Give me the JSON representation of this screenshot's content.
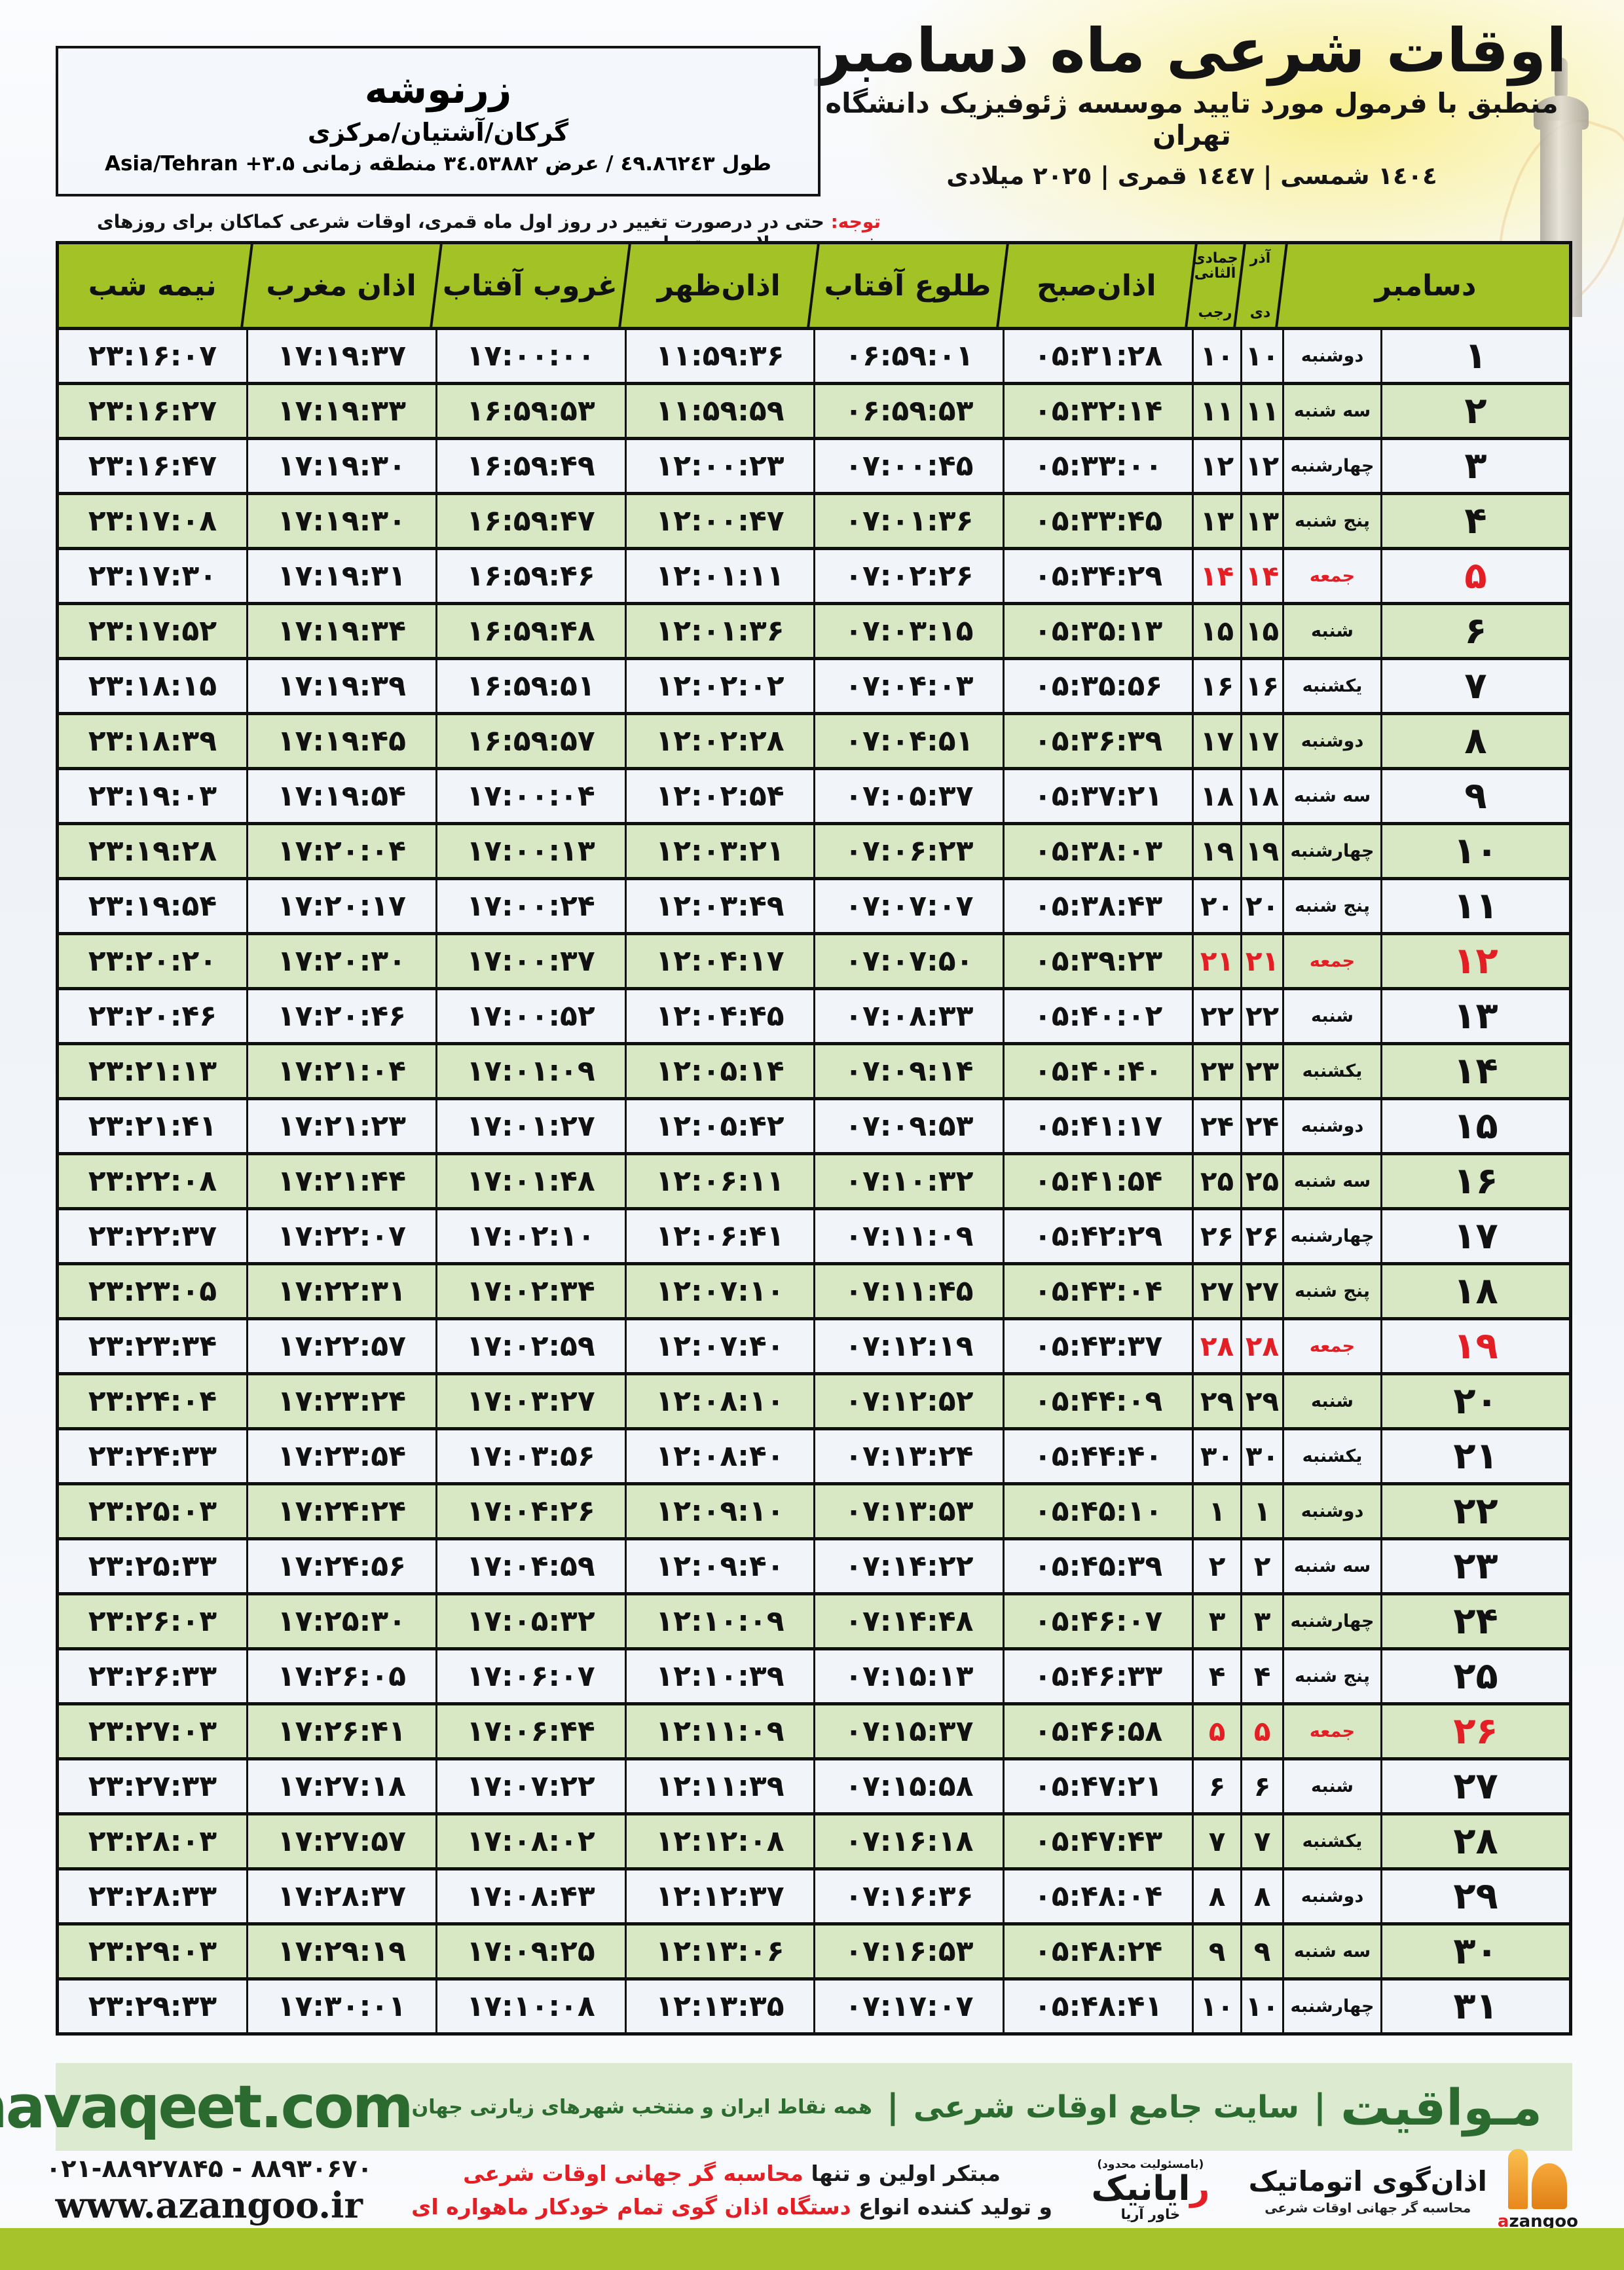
{
  "colors": {
    "accent_green": "#a2c225",
    "row_green": "#d9e8c4",
    "row_light": "#f1f4f9",
    "friday_red": "#e31e24",
    "band_green_bg": "#dcead0",
    "band_green_text": "#2c6b2f",
    "bottom_bar": "#a6c32b"
  },
  "header": {
    "title": "اوقات شرعی ماه دسامبر",
    "subtitle": "منطبق با فرمول مورد تایید موسسه ژئوفیزیک دانشگاه تهران",
    "calendar_years": "١٤٠٤ شمسی | ١٤٤٧ قمری | ٢٠٢٥ میلادی"
  },
  "location": {
    "name": "زرنوشه",
    "region": "گرکان/آشتیان/مرکزی",
    "coordinates": "طول ٤٩.٨٦٢٤٣ / عرض ٣٤.٥٣٨٨٢ منطقه زمانی ۳.۵+ Asia/Tehran"
  },
  "notice": {
    "label": "توجه:",
    "text": " حتی در درصورت تغییر در روز اول ماه قمری، اوقات شرعی کماکان برای روزهای شمسی و میلادی معتبر است."
  },
  "table": {
    "headers": {
      "december": "دسامبر",
      "persian_month_top": "آذر",
      "persian_month_bottom": "دی",
      "hijri_month_top": "جمادی الثانی",
      "hijri_month_bottom": "رجب",
      "fajr": "اذان‌صبح",
      "sunrise": "طلوع آفتاب",
      "dhuhr": "اذان‌ظهر",
      "sunset": "غروب آفتاب",
      "maghrib": "اذان مغرب",
      "midnight": "نیمه شب"
    },
    "rows": [
      {
        "day": "۱",
        "weekday": "دوشنبه",
        "pday": "۱۰",
        "hday": "۱۰",
        "fajr": "۰۵:۳۱:۲۸",
        "sunrise": "۰۶:۵۹:۰۱",
        "dhuhr": "۱۱:۵۹:۳۶",
        "sunset": "۱۷:۰۰:۰۰",
        "maghrib": "۱۷:۱۹:۳۷",
        "midnight": "۲۳:۱۶:۰۷",
        "friday": false
      },
      {
        "day": "۲",
        "weekday": "سه شنبه",
        "pday": "۱۱",
        "hday": "۱۱",
        "fajr": "۰۵:۳۲:۱۴",
        "sunrise": "۰۶:۵۹:۵۳",
        "dhuhr": "۱۱:۵۹:۵۹",
        "sunset": "۱۶:۵۹:۵۳",
        "maghrib": "۱۷:۱۹:۳۳",
        "midnight": "۲۳:۱۶:۲۷",
        "friday": false
      },
      {
        "day": "۳",
        "weekday": "چهارشنبه",
        "pday": "۱۲",
        "hday": "۱۲",
        "fajr": "۰۵:۳۳:۰۰",
        "sunrise": "۰۷:۰۰:۴۵",
        "dhuhr": "۱۲:۰۰:۲۳",
        "sunset": "۱۶:۵۹:۴۹",
        "maghrib": "۱۷:۱۹:۳۰",
        "midnight": "۲۳:۱۶:۴۷",
        "friday": false
      },
      {
        "day": "۴",
        "weekday": "پنج شنبه",
        "pday": "۱۳",
        "hday": "۱۳",
        "fajr": "۰۵:۳۳:۴۵",
        "sunrise": "۰۷:۰۱:۳۶",
        "dhuhr": "۱۲:۰۰:۴۷",
        "sunset": "۱۶:۵۹:۴۷",
        "maghrib": "۱۷:۱۹:۳۰",
        "midnight": "۲۳:۱۷:۰۸",
        "friday": false
      },
      {
        "day": "۵",
        "weekday": "جمعه",
        "pday": "۱۴",
        "hday": "۱۴",
        "fajr": "۰۵:۳۴:۲۹",
        "sunrise": "۰۷:۰۲:۲۶",
        "dhuhr": "۱۲:۰۱:۱۱",
        "sunset": "۱۶:۵۹:۴۶",
        "maghrib": "۱۷:۱۹:۳۱",
        "midnight": "۲۳:۱۷:۳۰",
        "friday": true
      },
      {
        "day": "۶",
        "weekday": "شنبه",
        "pday": "۱۵",
        "hday": "۱۵",
        "fajr": "۰۵:۳۵:۱۳",
        "sunrise": "۰۷:۰۳:۱۵",
        "dhuhr": "۱۲:۰۱:۳۶",
        "sunset": "۱۶:۵۹:۴۸",
        "maghrib": "۱۷:۱۹:۳۴",
        "midnight": "۲۳:۱۷:۵۲",
        "friday": false
      },
      {
        "day": "۷",
        "weekday": "یکشنبه",
        "pday": "۱۶",
        "hday": "۱۶",
        "fajr": "۰۵:۳۵:۵۶",
        "sunrise": "۰۷:۰۴:۰۳",
        "dhuhr": "۱۲:۰۲:۰۲",
        "sunset": "۱۶:۵۹:۵۱",
        "maghrib": "۱۷:۱۹:۳۹",
        "midnight": "۲۳:۱۸:۱۵",
        "friday": false
      },
      {
        "day": "۸",
        "weekday": "دوشنبه",
        "pday": "۱۷",
        "hday": "۱۷",
        "fajr": "۰۵:۳۶:۳۹",
        "sunrise": "۰۷:۰۴:۵۱",
        "dhuhr": "۱۲:۰۲:۲۸",
        "sunset": "۱۶:۵۹:۵۷",
        "maghrib": "۱۷:۱۹:۴۵",
        "midnight": "۲۳:۱۸:۳۹",
        "friday": false
      },
      {
        "day": "۹",
        "weekday": "سه شنبه",
        "pday": "۱۸",
        "hday": "۱۸",
        "fajr": "۰۵:۳۷:۲۱",
        "sunrise": "۰۷:۰۵:۳۷",
        "dhuhr": "۱۲:۰۲:۵۴",
        "sunset": "۱۷:۰۰:۰۴",
        "maghrib": "۱۷:۱۹:۵۴",
        "midnight": "۲۳:۱۹:۰۳",
        "friday": false
      },
      {
        "day": "۱۰",
        "weekday": "چهارشنبه",
        "pday": "۱۹",
        "hday": "۱۹",
        "fajr": "۰۵:۳۸:۰۳",
        "sunrise": "۰۷:۰۶:۲۳",
        "dhuhr": "۱۲:۰۳:۲۱",
        "sunset": "۱۷:۰۰:۱۳",
        "maghrib": "۱۷:۲۰:۰۴",
        "midnight": "۲۳:۱۹:۲۸",
        "friday": false
      },
      {
        "day": "۱۱",
        "weekday": "پنج شنبه",
        "pday": "۲۰",
        "hday": "۲۰",
        "fajr": "۰۵:۳۸:۴۳",
        "sunrise": "۰۷:۰۷:۰۷",
        "dhuhr": "۱۲:۰۳:۴۹",
        "sunset": "۱۷:۰۰:۲۴",
        "maghrib": "۱۷:۲۰:۱۷",
        "midnight": "۲۳:۱۹:۵۴",
        "friday": false
      },
      {
        "day": "۱۲",
        "weekday": "جمعه",
        "pday": "۲۱",
        "hday": "۲۱",
        "fajr": "۰۵:۳۹:۲۳",
        "sunrise": "۰۷:۰۷:۵۰",
        "dhuhr": "۱۲:۰۴:۱۷",
        "sunset": "۱۷:۰۰:۳۷",
        "maghrib": "۱۷:۲۰:۳۰",
        "midnight": "۲۳:۲۰:۲۰",
        "friday": true
      },
      {
        "day": "۱۳",
        "weekday": "شنبه",
        "pday": "۲۲",
        "hday": "۲۲",
        "fajr": "۰۵:۴۰:۰۲",
        "sunrise": "۰۷:۰۸:۳۳",
        "dhuhr": "۱۲:۰۴:۴۵",
        "sunset": "۱۷:۰۰:۵۲",
        "maghrib": "۱۷:۲۰:۴۶",
        "midnight": "۲۳:۲۰:۴۶",
        "friday": false
      },
      {
        "day": "۱۴",
        "weekday": "یکشنبه",
        "pday": "۲۳",
        "hday": "۲۳",
        "fajr": "۰۵:۴۰:۴۰",
        "sunrise": "۰۷:۰۹:۱۴",
        "dhuhr": "۱۲:۰۵:۱۴",
        "sunset": "۱۷:۰۱:۰۹",
        "maghrib": "۱۷:۲۱:۰۴",
        "midnight": "۲۳:۲۱:۱۳",
        "friday": false
      },
      {
        "day": "۱۵",
        "weekday": "دوشنبه",
        "pday": "۲۴",
        "hday": "۲۴",
        "fajr": "۰۵:۴۱:۱۷",
        "sunrise": "۰۷:۰۹:۵۳",
        "dhuhr": "۱۲:۰۵:۴۲",
        "sunset": "۱۷:۰۱:۲۷",
        "maghrib": "۱۷:۲۱:۲۳",
        "midnight": "۲۳:۲۱:۴۱",
        "friday": false
      },
      {
        "day": "۱۶",
        "weekday": "سه شنبه",
        "pday": "۲۵",
        "hday": "۲۵",
        "fajr": "۰۵:۴۱:۵۴",
        "sunrise": "۰۷:۱۰:۳۲",
        "dhuhr": "۱۲:۰۶:۱۱",
        "sunset": "۱۷:۰۱:۴۸",
        "maghrib": "۱۷:۲۱:۴۴",
        "midnight": "۲۳:۲۲:۰۸",
        "friday": false
      },
      {
        "day": "۱۷",
        "weekday": "چهارشنبه",
        "pday": "۲۶",
        "hday": "۲۶",
        "fajr": "۰۵:۴۲:۲۹",
        "sunrise": "۰۷:۱۱:۰۹",
        "dhuhr": "۱۲:۰۶:۴۱",
        "sunset": "۱۷:۰۲:۱۰",
        "maghrib": "۱۷:۲۲:۰۷",
        "midnight": "۲۳:۲۲:۳۷",
        "friday": false
      },
      {
        "day": "۱۸",
        "weekday": "پنج شنبه",
        "pday": "۲۷",
        "hday": "۲۷",
        "fajr": "۰۵:۴۳:۰۴",
        "sunrise": "۰۷:۱۱:۴۵",
        "dhuhr": "۱۲:۰۷:۱۰",
        "sunset": "۱۷:۰۲:۳۴",
        "maghrib": "۱۷:۲۲:۳۱",
        "midnight": "۲۳:۲۳:۰۵",
        "friday": false
      },
      {
        "day": "۱۹",
        "weekday": "جمعه",
        "pday": "۲۸",
        "hday": "۲۸",
        "fajr": "۰۵:۴۳:۳۷",
        "sunrise": "۰۷:۱۲:۱۹",
        "dhuhr": "۱۲:۰۷:۴۰",
        "sunset": "۱۷:۰۲:۵۹",
        "maghrib": "۱۷:۲۲:۵۷",
        "midnight": "۲۳:۲۳:۳۴",
        "friday": true
      },
      {
        "day": "۲۰",
        "weekday": "شنبه",
        "pday": "۲۹",
        "hday": "۲۹",
        "fajr": "۰۵:۴۴:۰۹",
        "sunrise": "۰۷:۱۲:۵۲",
        "dhuhr": "۱۲:۰۸:۱۰",
        "sunset": "۱۷:۰۳:۲۷",
        "maghrib": "۱۷:۲۳:۲۴",
        "midnight": "۲۳:۲۴:۰۴",
        "friday": false
      },
      {
        "day": "۲۱",
        "weekday": "یکشنبه",
        "pday": "۳۰",
        "hday": "۳۰",
        "fajr": "۰۵:۴۴:۴۰",
        "sunrise": "۰۷:۱۳:۲۴",
        "dhuhr": "۱۲:۰۸:۴۰",
        "sunset": "۱۷:۰۳:۵۶",
        "maghrib": "۱۷:۲۳:۵۴",
        "midnight": "۲۳:۲۴:۳۳",
        "friday": false
      },
      {
        "day": "۲۲",
        "weekday": "دوشنبه",
        "pday": "۱",
        "hday": "۱",
        "fajr": "۰۵:۴۵:۱۰",
        "sunrise": "۰۷:۱۳:۵۳",
        "dhuhr": "۱۲:۰۹:۱۰",
        "sunset": "۱۷:۰۴:۲۶",
        "maghrib": "۱۷:۲۴:۲۴",
        "midnight": "۲۳:۲۵:۰۳",
        "friday": false
      },
      {
        "day": "۲۳",
        "weekday": "سه شنبه",
        "pday": "۲",
        "hday": "۲",
        "fajr": "۰۵:۴۵:۳۹",
        "sunrise": "۰۷:۱۴:۲۲",
        "dhuhr": "۱۲:۰۹:۴۰",
        "sunset": "۱۷:۰۴:۵۹",
        "maghrib": "۱۷:۲۴:۵۶",
        "midnight": "۲۳:۲۵:۳۳",
        "friday": false
      },
      {
        "day": "۲۴",
        "weekday": "چهارشنبه",
        "pday": "۳",
        "hday": "۳",
        "fajr": "۰۵:۴۶:۰۷",
        "sunrise": "۰۷:۱۴:۴۸",
        "dhuhr": "۱۲:۱۰:۰۹",
        "sunset": "۱۷:۰۵:۳۲",
        "maghrib": "۱۷:۲۵:۳۰",
        "midnight": "۲۳:۲۶:۰۳",
        "friday": false
      },
      {
        "day": "۲۵",
        "weekday": "پنج شنبه",
        "pday": "۴",
        "hday": "۴",
        "fajr": "۰۵:۴۶:۳۳",
        "sunrise": "۰۷:۱۵:۱۳",
        "dhuhr": "۱۲:۱۰:۳۹",
        "sunset": "۱۷:۰۶:۰۷",
        "maghrib": "۱۷:۲۶:۰۵",
        "midnight": "۲۳:۲۶:۳۳",
        "friday": false
      },
      {
        "day": "۲۶",
        "weekday": "جمعه",
        "pday": "۵",
        "hday": "۵",
        "fajr": "۰۵:۴۶:۵۸",
        "sunrise": "۰۷:۱۵:۳۷",
        "dhuhr": "۱۲:۱۱:۰۹",
        "sunset": "۱۷:۰۶:۴۴",
        "maghrib": "۱۷:۲۶:۴۱",
        "midnight": "۲۳:۲۷:۰۳",
        "friday": true
      },
      {
        "day": "۲۷",
        "weekday": "شنبه",
        "pday": "۶",
        "hday": "۶",
        "fajr": "۰۵:۴۷:۲۱",
        "sunrise": "۰۷:۱۵:۵۸",
        "dhuhr": "۱۲:۱۱:۳۹",
        "sunset": "۱۷:۰۷:۲۲",
        "maghrib": "۱۷:۲۷:۱۸",
        "midnight": "۲۳:۲۷:۳۳",
        "friday": false
      },
      {
        "day": "۲۸",
        "weekday": "یکشنبه",
        "pday": "۷",
        "hday": "۷",
        "fajr": "۰۵:۴۷:۴۳",
        "sunrise": "۰۷:۱۶:۱۸",
        "dhuhr": "۱۲:۱۲:۰۸",
        "sunset": "۱۷:۰۸:۰۲",
        "maghrib": "۱۷:۲۷:۵۷",
        "midnight": "۲۳:۲۸:۰۳",
        "friday": false
      },
      {
        "day": "۲۹",
        "weekday": "دوشنبه",
        "pday": "۸",
        "hday": "۸",
        "fajr": "۰۵:۴۸:۰۴",
        "sunrise": "۰۷:۱۶:۳۶",
        "dhuhr": "۱۲:۱۲:۳۷",
        "sunset": "۱۷:۰۸:۴۳",
        "maghrib": "۱۷:۲۸:۳۷",
        "midnight": "۲۳:۲۸:۳۳",
        "friday": false
      },
      {
        "day": "۳۰",
        "weekday": "سه شنبه",
        "pday": "۹",
        "hday": "۹",
        "fajr": "۰۵:۴۸:۲۴",
        "sunrise": "۰۷:۱۶:۵۳",
        "dhuhr": "۱۲:۱۳:۰۶",
        "sunset": "۱۷:۰۹:۲۵",
        "maghrib": "۱۷:۲۹:۱۹",
        "midnight": "۲۳:۲۹:۰۳",
        "friday": false
      },
      {
        "day": "۳۱",
        "weekday": "چهارشنبه",
        "pday": "۱۰",
        "hday": "۱۰",
        "fajr": "۰۵:۴۸:۴۱",
        "sunrise": "۰۷:۱۷:۰۷",
        "dhuhr": "۱۲:۱۳:۳۵",
        "sunset": "۱۷:۱۰:۰۸",
        "maghrib": "۱۷:۳۰:۰۱",
        "midnight": "۲۳:۲۹:۳۳",
        "friday": false
      }
    ]
  },
  "footer_band": {
    "site_name": "مـواقیت",
    "separator": "|",
    "site_desc": "سایت جامع اوقات شرعی",
    "site_scope": "همه نقاط ایران و منتخب شهرهای زیارتی جهان",
    "domain": "mavaqeet.com"
  },
  "bottom": {
    "phones": "۰۲۱-۸۸۹۲۷۸۴۵ - ۸۸۹۳۰۶۷۰",
    "website": "www.azangoo.ir",
    "promo_line1_black": "مبتکر اولین و تنها ",
    "promo_line1_red": "محاسبه گر جهانی اوقات شرعی",
    "promo_line2_black": "و تولید کننده انواع ",
    "promo_line2_red": "دستگاه اذان گوی تمام خودکار ماهواره ای",
    "rayanik_small": "(بامسئولیت محدود)",
    "rayanik_r": "ر",
    "rayanik_rest": "ایانیک",
    "rayanik_sub": "خاور آریا",
    "azangoo_title": "اذان‌گوی اتوماتیک",
    "azangoo_sub": "محاسبه گر جهانی اوقات شرعی",
    "azangoo_brand_a": "a",
    "azangoo_brand_rest": "zangoo"
  }
}
